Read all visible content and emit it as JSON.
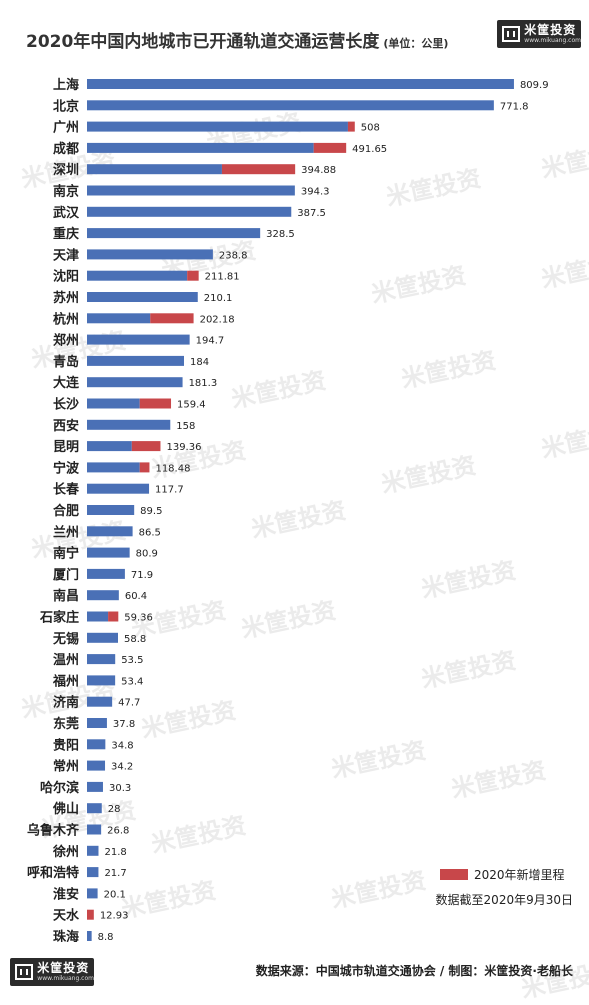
{
  "header": {
    "title": "2020年中国内地城市已开通轨道交通运营长度",
    "unit": "(单位：公里)"
  },
  "logo": {
    "name": "米筐投资",
    "url": "www.mikuang.com"
  },
  "legend": {
    "label": "2020年新增里程"
  },
  "note": "数据截至2020年9月30日",
  "footer": "数据来源：中国城市轨道交通协会 / 制图：米筐投资·老船长",
  "watermark": "米筐投资",
  "colors": {
    "existing": "#4a70b6",
    "new": "#c8474a"
  },
  "chart_data": {
    "type": "bar",
    "orientation": "horizontal",
    "stacked": true,
    "title": "2020年中国内地城市已开通轨道交通运营长度",
    "unit": "(单位：公里)",
    "xlim": [
      0,
      810
    ],
    "categories": [
      "上海",
      "北京",
      "广州",
      "成都",
      "深圳",
      "南京",
      "武汉",
      "重庆",
      "天津",
      "沈阳",
      "苏州",
      "杭州",
      "郑州",
      "青岛",
      "大连",
      "长沙",
      "西安",
      "昆明",
      "宁波",
      "长春",
      "合肥",
      "兰州",
      "南宁",
      "厦门",
      "南昌",
      "石家庄",
      "无锡",
      "温州",
      "福州",
      "济南",
      "东莞",
      "贵阳",
      "常州",
      "哈尔滨",
      "佛山",
      "乌鲁木齐",
      "徐州",
      "呼和浩特",
      "淮安",
      "天水",
      "珠海"
    ],
    "totals": [
      809.9,
      771.8,
      508,
      491.65,
      394.88,
      394.3,
      387.5,
      328.5,
      238.8,
      211.81,
      210.1,
      202.18,
      194.7,
      184,
      181.3,
      159.4,
      158,
      139.36,
      118.48,
      117.7,
      89.5,
      86.5,
      80.9,
      71.9,
      60.4,
      59.36,
      58.8,
      53.5,
      53.4,
      47.7,
      37.8,
      34.8,
      34.2,
      30.3,
      28,
      26.8,
      21.8,
      21.7,
      20.1,
      12.93,
      8.8
    ],
    "labels": [
      "809.9",
      "771.8",
      "508",
      "491.65",
      "394.88",
      "394.3",
      "387.5",
      "328.5",
      "238.8",
      "211.81",
      "210.1",
      "202.18",
      "194.7",
      "184",
      "181.3",
      "159.4",
      "158",
      "139.36",
      "118.48",
      "117.7",
      "89.5",
      "86.5",
      "80.9",
      "71.9",
      "60.4",
      "59.36",
      "58.8",
      "53.5",
      "53.4",
      "47.7",
      "37.8",
      "34.8",
      "34.2",
      "30.3",
      "28",
      "26.8",
      "21.8",
      "21.7",
      "20.1",
      "12.93",
      "8.8"
    ],
    "series": [
      {
        "name": "",
        "role": "existing",
        "values": [
          809.9,
          771.8,
          495,
          430,
          256,
          394.3,
          387.5,
          328.5,
          238.8,
          190,
          210.1,
          120,
          194.7,
          184,
          181.3,
          100,
          158,
          85,
          100,
          117.7,
          89.5,
          86.5,
          80.9,
          71.9,
          60.4,
          40,
          58.8,
          53.5,
          53.4,
          47.7,
          37.8,
          34.8,
          34.2,
          30.3,
          28,
          26.8,
          21.8,
          21.7,
          20.1,
          0,
          8.8
        ]
      },
      {
        "name": "2020年新增里程",
        "role": "new",
        "values": [
          0,
          0,
          13,
          61.65,
          138.88,
          0,
          0,
          0,
          0,
          21.81,
          0,
          82.18,
          0,
          0,
          0,
          59.4,
          0,
          54.36,
          18.48,
          0,
          0,
          0,
          0,
          0,
          0,
          19.36,
          0,
          0,
          0,
          0,
          0,
          0,
          0,
          0,
          0,
          0,
          0,
          0,
          0,
          12.93,
          0
        ]
      }
    ]
  }
}
